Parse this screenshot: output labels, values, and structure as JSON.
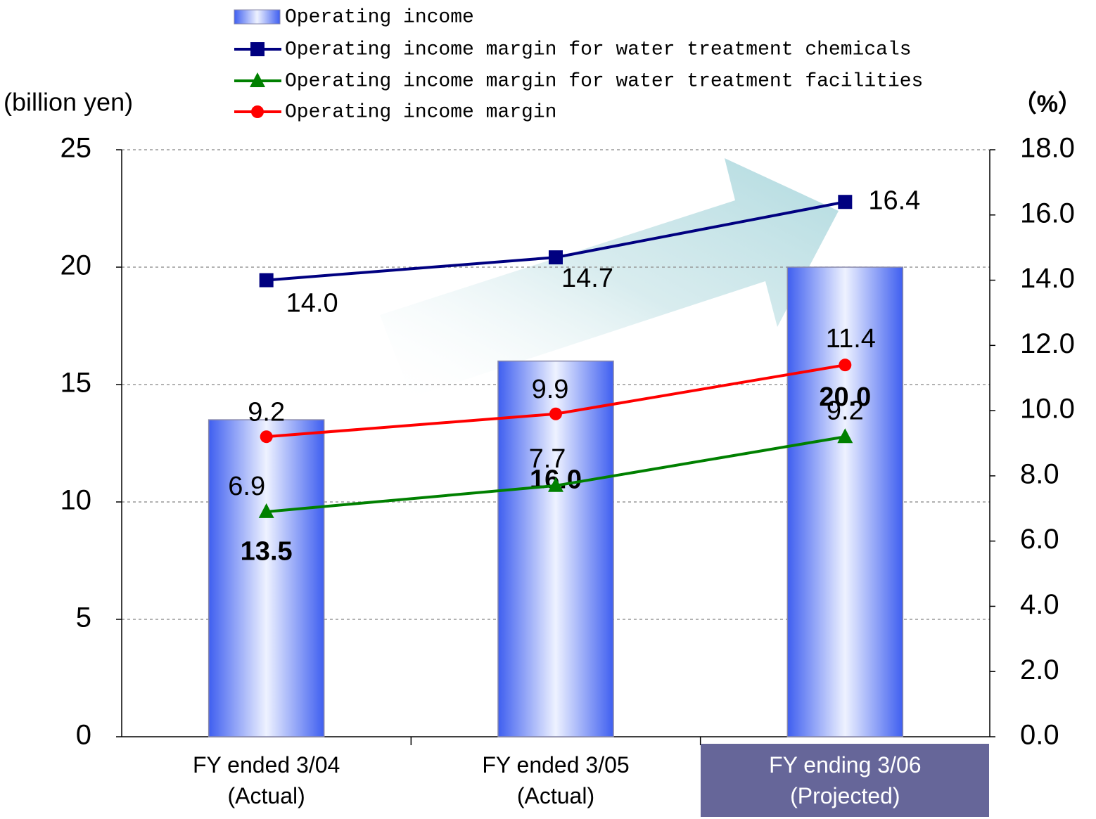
{
  "chart_data": {
    "type": "combo",
    "y_axis_label": "(billion yen)",
    "y2_axis_label": "（%）",
    "categories": [
      "FY ended 3/04\n(Actual)",
      "FY ended 3/05\n(Actual)",
      "FY ending 3/06\n(Projected)"
    ],
    "highlight_category": 2,
    "highlight_color": "#666699",
    "ylim": [
      0,
      25
    ],
    "yticks": [
      0,
      5,
      10,
      15,
      20,
      25
    ],
    "y2lim": [
      0,
      18
    ],
    "y2ticks": [
      {
        "value": 0,
        "label": "0.0"
      },
      {
        "value": 2,
        "label": "2.0"
      },
      {
        "value": 4,
        "label": "4.0"
      },
      {
        "value": 6,
        "label": "6.0"
      },
      {
        "value": 8,
        "label": "8.0"
      },
      {
        "value": 10,
        "label": "10.0"
      },
      {
        "value": 12,
        "label": "12.0"
      },
      {
        "value": 14,
        "label": "14.0"
      },
      {
        "value": 16,
        "label": "16.0"
      },
      {
        "value": 18,
        "label": "18.0"
      }
    ],
    "grid": true,
    "series": [
      {
        "name": "Operating income",
        "type": "bar",
        "color": "#3f5ff0",
        "values": [
          13.5,
          16.0,
          20.0
        ],
        "value_labels": [
          "13.5",
          "16.0",
          "20.0"
        ]
      },
      {
        "name": "Operating income margin for water treatment chemicals",
        "type": "line",
        "axis": "y2",
        "marker": "square",
        "color": "#000080",
        "values": [
          14.0,
          14.7,
          16.4
        ],
        "value_labels": [
          "14.0",
          "14.7",
          "16.4"
        ]
      },
      {
        "name": "Operating income margin for water treatment facilities",
        "type": "line",
        "axis": "y2",
        "marker": "triangle",
        "color": "#008000",
        "values": [
          6.9,
          7.7,
          9.2
        ],
        "value_labels": [
          "6.9",
          "7.7",
          "9.2"
        ]
      },
      {
        "name": "Operating income margin",
        "type": "line",
        "axis": "y2",
        "marker": "circle",
        "color": "#ff0000",
        "values": [
          9.2,
          9.9,
          11.4
        ],
        "value_labels": [
          "9.2",
          "9.9",
          "11.4"
        ]
      }
    ]
  }
}
